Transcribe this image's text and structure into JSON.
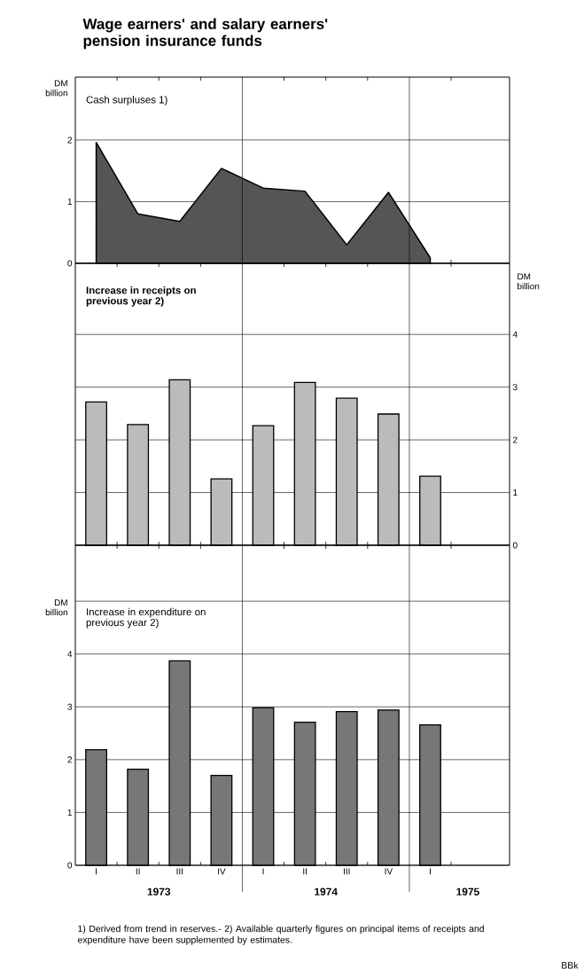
{
  "chart_data": [
    {
      "type": "area",
      "title": "Wage earners' and salary earners' pension insurance funds",
      "subtitle": "Cash surpluses 1)",
      "ylabel": "DM billion",
      "color": "#555555",
      "categories": [
        null,
        null,
        null,
        null,
        null,
        null,
        null,
        null,
        null
      ],
      "values": [
        1.96,
        0.8,
        0.68,
        1.54,
        1.22,
        1.17,
        0.3,
        1.15,
        0.09
      ],
      "ylim": [
        0,
        3.02
      ],
      "yticks": [
        0,
        1,
        2
      ],
      "grid": "y",
      "tick_labels": "y"
    },
    {
      "type": "bar",
      "title": "Increase in receipts on previous year 2)",
      "ylabel": "DM billion",
      "categories": [
        null,
        null,
        null,
        null,
        null,
        null,
        null,
        null,
        null
      ],
      "series": [
        {
          "color": "#bbbbbb",
          "values": [
            2.72,
            2.29,
            3.14,
            1.26,
            2.27,
            3.09,
            2.79,
            2.49,
            1.31
          ]
        }
      ],
      "ylim": [
        0,
        5.35
      ],
      "yticks": [
        0,
        1,
        2,
        3,
        4
      ],
      "grid": "y"
    },
    {
      "type": "bar",
      "title": "Increase in expenditure on previous year 2)",
      "ylabel": "DM billion",
      "categories": [
        "I",
        "II",
        "III",
        "IV",
        "I",
        "II",
        "III",
        "IV",
        "I"
      ],
      "series": [
        {
          "color": "#777777",
          "values": [
            2.19,
            1.82,
            3.87,
            1.7,
            2.98,
            2.71,
            2.91,
            2.94,
            2.66
          ]
        }
      ],
      "ylim": [
        0,
        6.06
      ],
      "yticks": [
        0,
        1,
        2,
        3,
        4,
        {
          "value": 5,
          "label": null
        }
      ],
      "grid": "y",
      "annotations": [
        "1973",
        "1974",
        "1975",
        "1) Derived from trend in reserves.- 2) Available quarterly figures on principal items of receipts and expenditure have been supplemented by estimates.",
        "BBk"
      ]
    }
  ]
}
